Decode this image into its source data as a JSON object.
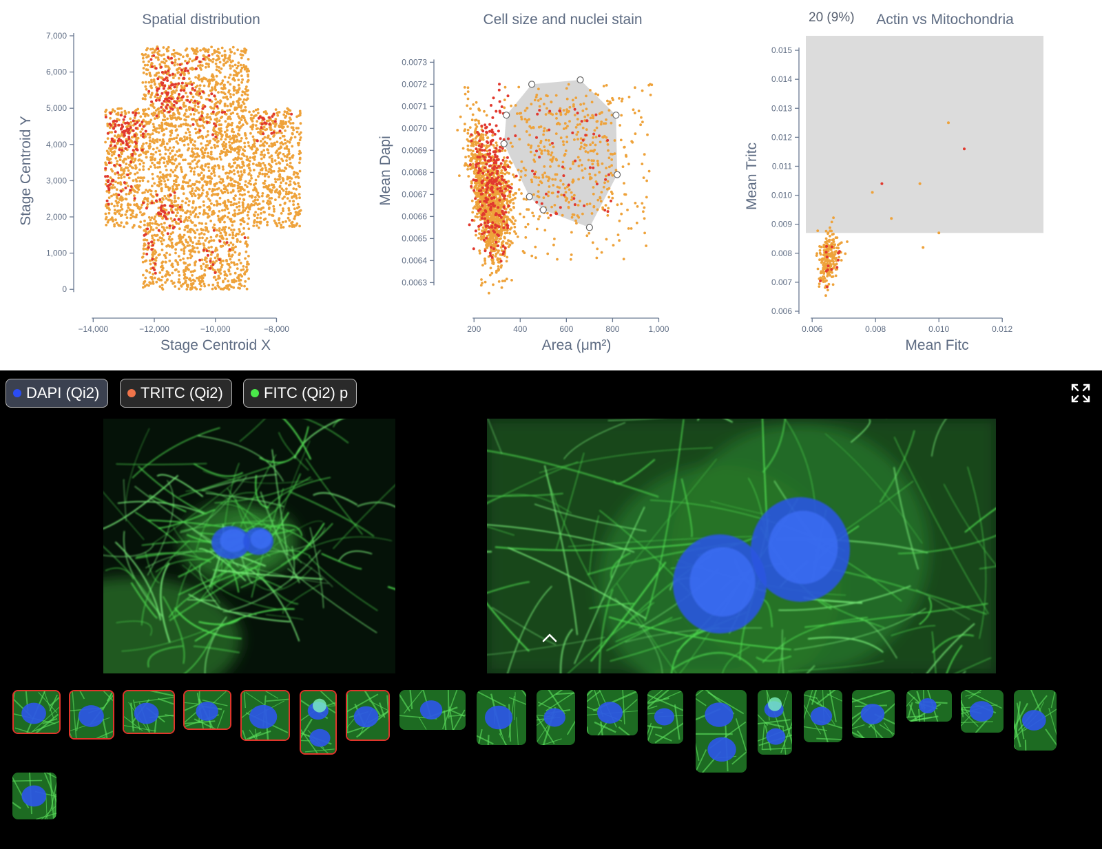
{
  "colors": {
    "base": "#eea23a",
    "selected": "#e1392e",
    "hull": "#d6d6d6",
    "axis": "#6b7a92",
    "text": "#5d6b82"
  },
  "chart_data": [
    {
      "type": "scatter",
      "title": "Spatial distribution",
      "xlabel": "Stage Centroid X",
      "ylabel": "Stage Centroid Y",
      "xlim": [
        -14300,
        -6500
      ],
      "ylim": [
        -300,
        7000
      ],
      "xticks": [
        "−14,000",
        "−12,000",
        "−10,000",
        "−8,000"
      ],
      "xtick_values": [
        -14000,
        -12000,
        -10000,
        -8000
      ],
      "yticks": [
        "0",
        "1,000",
        "2,000",
        "3,000",
        "4,000",
        "5,000",
        "6,000",
        "7,000"
      ],
      "ytick_values": [
        0,
        1000,
        2000,
        3000,
        4000,
        5000,
        6000,
        7000
      ],
      "region_cross": {
        "arm_x": [
          -13600,
          -7200
        ],
        "arm_y": [
          1700,
          5000
        ],
        "stem_x": [
          -12400,
          -8900
        ],
        "stem_y": [
          0,
          6700
        ]
      },
      "series": [
        {
          "name": "",
          "n_points": 3200
        },
        {
          "name": "",
          "n_points": 340
        }
      ]
    },
    {
      "type": "scatter",
      "title": "Cell size and nuclei stain",
      "xlabel": "Area (μm²)",
      "ylabel": "Mean Dapi",
      "xlim": [
        80,
        1100
      ],
      "ylim": [
        0.00622,
        0.00742
      ],
      "xticks": [
        "200",
        "400",
        "600",
        "800",
        "1,000"
      ],
      "xtick_values": [
        200,
        400,
        600,
        800,
        1000
      ],
      "yticks": [
        "0.0063",
        "0.0064",
        "0.0065",
        "0.0066",
        "0.0067",
        "0.0068",
        "0.0069",
        "0.0070",
        "0.0071",
        "0.0072",
        "0.0073"
      ],
      "ytick_values": [
        0.0063,
        0.0064,
        0.0065,
        0.0066,
        0.0067,
        0.0068,
        0.0069,
        0.007,
        0.0071,
        0.0072,
        0.0073
      ],
      "lasso": [
        [
          340,
          0.00706
        ],
        [
          330,
          0.00693
        ],
        [
          440,
          0.00669
        ],
        [
          500,
          0.00663
        ],
        [
          700,
          0.00655
        ],
        [
          820,
          0.00679
        ],
        [
          815,
          0.00706
        ],
        [
          660,
          0.00722
        ],
        [
          450,
          0.0072
        ]
      ],
      "series": [
        {
          "name": "",
          "n_points": 1700
        },
        {
          "name": "",
          "n_points": 330
        }
      ]
    },
    {
      "type": "scatter",
      "title": "Actin vs Mitochondria",
      "selection_count": "20 (9%)",
      "xlabel": "Mean Fitc",
      "ylabel": "Mean Tritc",
      "xlim": [
        0.0058,
        0.0133
      ],
      "ylim": [
        0.006,
        0.0155
      ],
      "xticks": [
        "0.006",
        "0.008",
        "0.010",
        "0.012"
      ],
      "xtick_values": [
        0.006,
        0.008,
        0.01,
        0.012
      ],
      "yticks": [
        "0.006",
        "0.007",
        "0.008",
        "0.009",
        "0.010",
        "0.011",
        "0.012",
        "0.013",
        "0.014",
        "0.015"
      ],
      "ytick_values": [
        0.006,
        0.007,
        0.008,
        0.009,
        0.01,
        0.011,
        0.012,
        0.013,
        0.014,
        0.015
      ],
      "brush": {
        "x": [
          0.0058,
          0.0133
        ],
        "y": [
          0.0087,
          0.0155
        ]
      },
      "outliers": [
        [
          0.0095,
          0.0082
        ],
        [
          0.01,
          0.0087
        ],
        [
          0.0085,
          0.0092
        ],
        [
          0.0079,
          0.0101
        ],
        [
          0.0082,
          0.0104
        ],
        [
          0.0094,
          0.0104
        ],
        [
          0.0103,
          0.0125
        ],
        [
          0.0108,
          0.0116
        ]
      ],
      "series": [
        {
          "name": "",
          "n_points": 220
        },
        {
          "name": "",
          "n_points": 20
        }
      ]
    }
  ],
  "viewer": {
    "channels": [
      {
        "label": "DAPI (Qi2)",
        "color": "#2b4cf2",
        "selected": true
      },
      {
        "label": "TRITC (Qi2)",
        "color": "#f0744a",
        "selected": false
      },
      {
        "label": "FITC (Qi2) p",
        "color": "#4ae84a",
        "selected": false
      }
    ],
    "expand_icon": "expand-icon",
    "collapse_icon": "chevron-up-icon",
    "thumbnails": [
      {
        "selected": true
      },
      {
        "selected": true
      },
      {
        "selected": true
      },
      {
        "selected": true
      },
      {
        "selected": true
      },
      {
        "selected": true
      },
      {
        "selected": true
      },
      {
        "selected": false
      },
      {
        "selected": false
      },
      {
        "selected": false
      },
      {
        "selected": false
      },
      {
        "selected": false
      },
      {
        "selected": false
      },
      {
        "selected": false
      },
      {
        "selected": false
      },
      {
        "selected": false
      },
      {
        "selected": false
      },
      {
        "selected": false
      },
      {
        "selected": false
      },
      {
        "selected": false
      }
    ]
  }
}
